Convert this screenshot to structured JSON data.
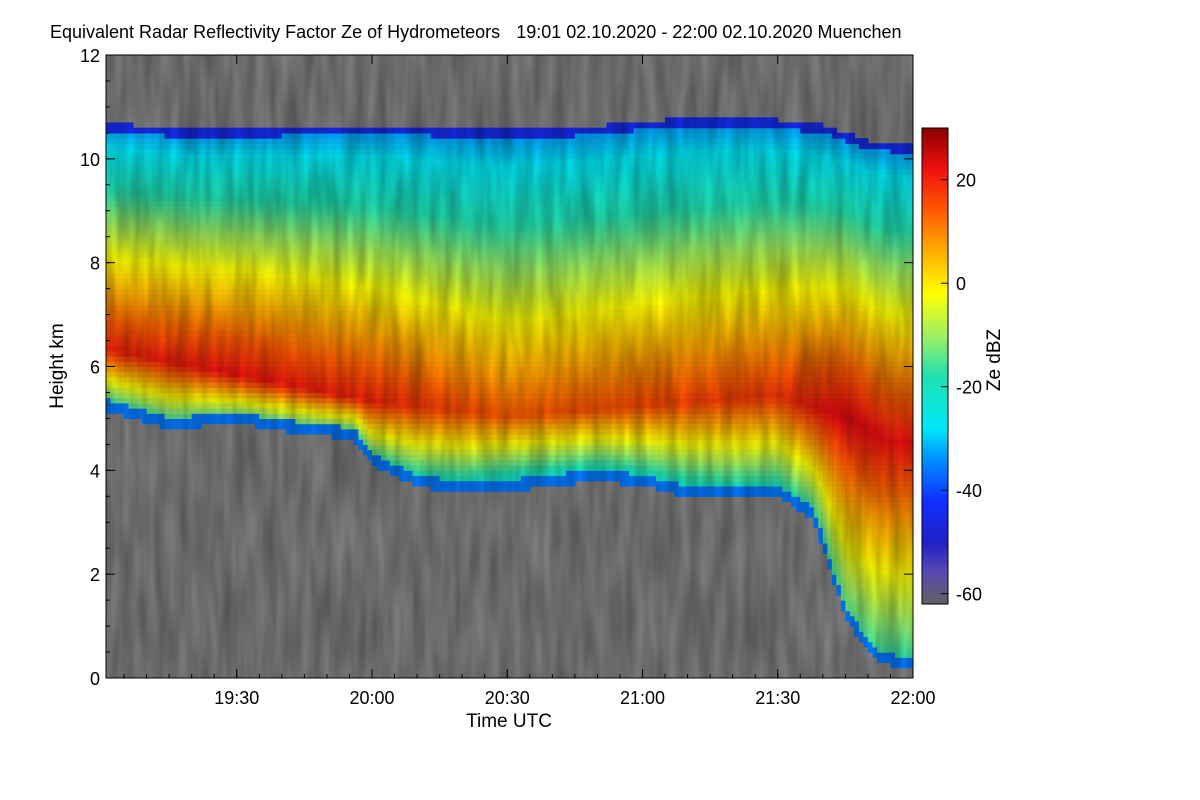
{
  "chart_data": {
    "type": "heatmap",
    "title": "Equivalent Radar Reflectivity Factor Ze of Hydrometeors",
    "subtitle": "19:01 02.10.2020 - 22:00 02.10.2020 Muenchen",
    "xlabel": "Time UTC",
    "ylabel": "Height km",
    "x_range_minutes_utc": [
      1141,
      1320
    ],
    "x_ticks": [
      {
        "label": "19:30",
        "minutes": 1170
      },
      {
        "label": "20:00",
        "minutes": 1200
      },
      {
        "label": "20:30",
        "minutes": 1230
      },
      {
        "label": "21:00",
        "minutes": 1260
      },
      {
        "label": "21:30",
        "minutes": 1290
      },
      {
        "label": "22:00",
        "minutes": 1320
      }
    ],
    "ylim": [
      0,
      12
    ],
    "y_ticks": [
      {
        "label": "0",
        "value": 0
      },
      {
        "label": "2",
        "value": 2
      },
      {
        "label": "4",
        "value": 4
      },
      {
        "label": "6",
        "value": 6
      },
      {
        "label": "8",
        "value": 8
      },
      {
        "label": "10",
        "value": 10
      },
      {
        "label": "12",
        "value": 12
      }
    ],
    "colorbar": {
      "label": "Ze dBZ",
      "range": [
        -62,
        30
      ],
      "ticks": [
        {
          "label": "20",
          "value": 20
        },
        {
          "label": "0",
          "value": 0
        },
        {
          "label": "-20",
          "value": -20
        },
        {
          "label": "-40",
          "value": -40
        },
        {
          "label": "-60",
          "value": -60
        }
      ],
      "stops": [
        {
          "value": -62,
          "color": "#606060"
        },
        {
          "value": -56,
          "color": "#5a4ab0"
        },
        {
          "value": -50,
          "color": "#2020c8"
        },
        {
          "value": -42,
          "color": "#1030ff"
        },
        {
          "value": -34,
          "color": "#0090ff"
        },
        {
          "value": -28,
          "color": "#00e8f8"
        },
        {
          "value": -18,
          "color": "#20e0b0"
        },
        {
          "value": -10,
          "color": "#a0f060"
        },
        {
          "value": -2,
          "color": "#ffff00"
        },
        {
          "value": 6,
          "color": "#ffb000"
        },
        {
          "value": 14,
          "color": "#ff5a00"
        },
        {
          "value": 22,
          "color": "#f01010"
        },
        {
          "value": 30,
          "color": "#8a0000"
        }
      ]
    },
    "background_color": "#808080",
    "cloud_top_km": [
      {
        "t": 1141,
        "h": 10.65
      },
      {
        "t": 1160,
        "h": 10.5
      },
      {
        "t": 1180,
        "h": 10.55
      },
      {
        "t": 1200,
        "h": 10.6
      },
      {
        "t": 1225,
        "h": 10.5
      },
      {
        "t": 1245,
        "h": 10.55
      },
      {
        "t": 1265,
        "h": 10.7
      },
      {
        "t": 1285,
        "h": 10.75
      },
      {
        "t": 1300,
        "h": 10.6
      },
      {
        "t": 1310,
        "h": 10.3
      },
      {
        "t": 1320,
        "h": 10.2
      }
    ],
    "cloud_base_km": [
      {
        "t": 1141,
        "h": 5.2
      },
      {
        "t": 1155,
        "h": 4.85
      },
      {
        "t": 1170,
        "h": 4.95
      },
      {
        "t": 1185,
        "h": 4.75
      },
      {
        "t": 1196,
        "h": 4.65
      },
      {
        "t": 1200,
        "h": 4.15
      },
      {
        "t": 1210,
        "h": 3.75
      },
      {
        "t": 1220,
        "h": 3.6
      },
      {
        "t": 1230,
        "h": 3.65
      },
      {
        "t": 1240,
        "h": 3.75
      },
      {
        "t": 1250,
        "h": 3.85
      },
      {
        "t": 1260,
        "h": 3.75
      },
      {
        "t": 1270,
        "h": 3.55
      },
      {
        "t": 1280,
        "h": 3.5
      },
      {
        "t": 1290,
        "h": 3.55
      },
      {
        "t": 1298,
        "h": 3.1
      },
      {
        "t": 1305,
        "h": 1.2
      },
      {
        "t": 1312,
        "h": 0.35
      },
      {
        "t": 1320,
        "h": 0.2
      }
    ],
    "max_reflectivity_layer_km": [
      {
        "t": 1141,
        "h": 6.3,
        "dbz": 20
      },
      {
        "t": 1170,
        "h": 5.8,
        "dbz": 22
      },
      {
        "t": 1200,
        "h": 5.3,
        "dbz": 20
      },
      {
        "t": 1230,
        "h": 5.0,
        "dbz": 14
      },
      {
        "t": 1260,
        "h": 5.2,
        "dbz": 16
      },
      {
        "t": 1290,
        "h": 5.4,
        "dbz": 18
      },
      {
        "t": 1305,
        "h": 5.0,
        "dbz": 24
      },
      {
        "t": 1315,
        "h": 4.5,
        "dbz": 22
      }
    ]
  }
}
